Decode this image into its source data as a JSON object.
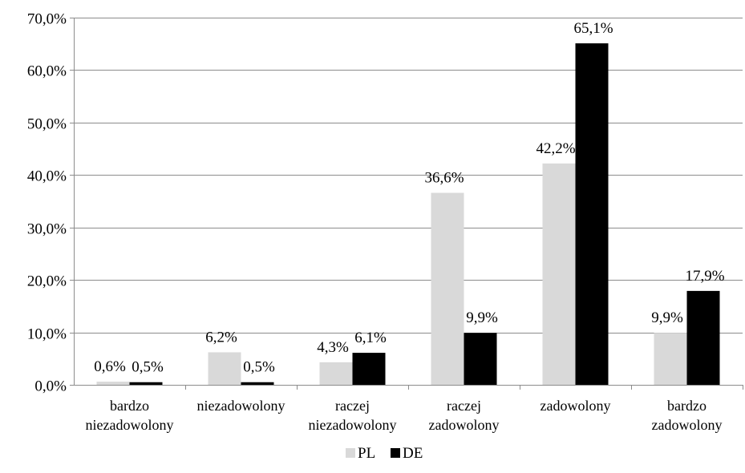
{
  "chart_data": {
    "type": "bar",
    "categories": [
      [
        "bardzo",
        "niezadowolony"
      ],
      [
        "niezadowolony"
      ],
      [
        "raczej",
        "niezadowolony"
      ],
      [
        "raczej",
        "zadowolony"
      ],
      [
        "zadowolony"
      ],
      [
        "bardzo",
        "zadowolony"
      ]
    ],
    "series": [
      {
        "name": "PL",
        "color": "#d9d9d9",
        "values": [
          0.6,
          6.2,
          4.3,
          36.6,
          42.2,
          9.9
        ],
        "labels": [
          "0,6%",
          "6,2%",
          "4,3%",
          "36,6%",
          "42,2%",
          "9,9%"
        ]
      },
      {
        "name": "DE",
        "color": "#000000",
        "values": [
          0.5,
          0.5,
          6.1,
          9.9,
          65.1,
          17.9
        ],
        "labels": [
          "0,5%",
          "0,5%",
          "6,1%",
          "9,9%",
          "65,1%",
          "17,9%"
        ]
      }
    ],
    "yticks": [
      0,
      10,
      20,
      30,
      40,
      50,
      60,
      70
    ],
    "ytick_labels": [
      "0,0%",
      "10,0%",
      "20,0%",
      "30,0%",
      "40,0%",
      "50,0%",
      "60,0%",
      "70,0%"
    ],
    "ylim": [
      0,
      70
    ],
    "grid": true,
    "legend": "bottom",
    "title": "",
    "xlabel": "",
    "ylabel": ""
  }
}
